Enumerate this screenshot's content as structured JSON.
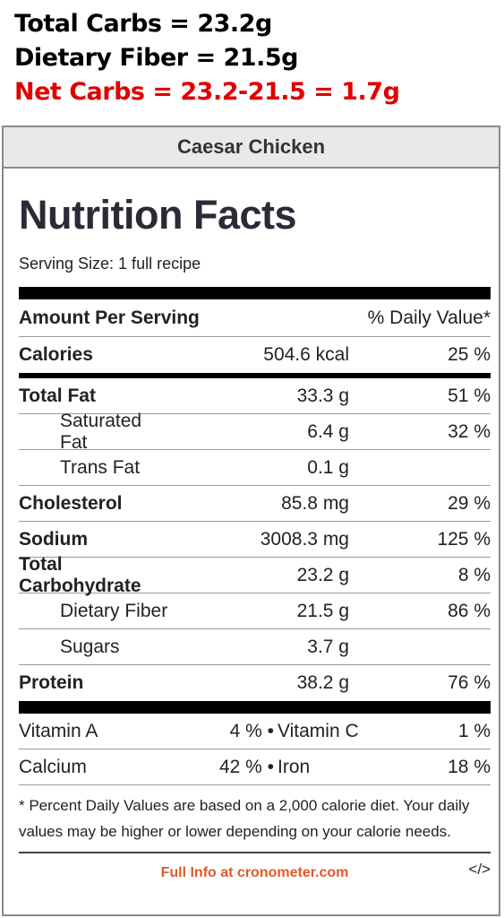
{
  "summary": {
    "total_carbs": "Total Carbs = 23.2g",
    "dietary_fiber": "Dietary Fiber = 21.5g",
    "net_carbs": "Net Carbs = 23.2-21.5 = 1.7g"
  },
  "label": {
    "recipe_title": "Caesar Chicken",
    "heading": "Nutrition Facts",
    "serving_size": "Serving Size: 1 full recipe",
    "amount_per_serving": "Amount Per Serving",
    "daily_value_header": "% Daily Value*",
    "calories": {
      "name": "Calories",
      "amount": "504.6 kcal",
      "pct": "25 %"
    },
    "nutrients": [
      {
        "name": "Total Fat",
        "amount": "33.3 g",
        "pct": "51 %"
      },
      {
        "name": "Saturated Fat",
        "amount": "6.4 g",
        "pct": "32 %"
      },
      {
        "name": "Trans Fat",
        "amount": "0.1 g",
        "pct": ""
      },
      {
        "name": "Cholesterol",
        "amount": "85.8 mg",
        "pct": "29 %"
      },
      {
        "name": "Sodium",
        "amount": "3008.3 mg",
        "pct": "125 %"
      },
      {
        "name": "Total Carbohydrate",
        "amount": "23.2 g",
        "pct": "8 %"
      },
      {
        "name": "Dietary Fiber",
        "amount": "21.5 g",
        "pct": "86 %"
      },
      {
        "name": "Sugars",
        "amount": "3.7 g",
        "pct": ""
      },
      {
        "name": "Protein",
        "amount": "38.2 g",
        "pct": "76 %"
      }
    ],
    "vitamins": [
      {
        "a_name": "Vitamin A",
        "a_pct": "4 % •",
        "b_name": "Vitamin C",
        "b_pct": "1 %"
      },
      {
        "a_name": "Calcium",
        "a_pct": "42 % •",
        "b_name": "Iron",
        "b_pct": "18 %"
      }
    ],
    "footnote": "* Percent Daily Values are based on a 2,000 calorie diet. Your daily values may be higher or lower depending on your calorie needs.",
    "footer_link": "Full Info at cronometer.com",
    "embed_code": "</>"
  },
  "colors": {
    "net_carbs": "#e10000",
    "link": "#e05a2a",
    "title_bar_bg": "#e9e9e9"
  }
}
